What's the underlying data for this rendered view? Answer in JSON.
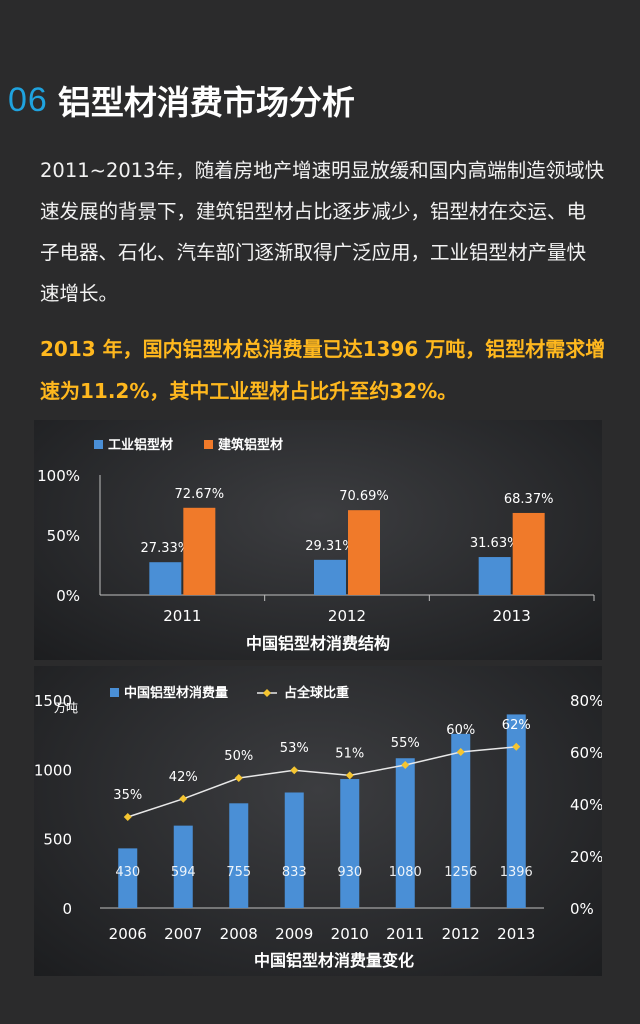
{
  "section": {
    "number": "06",
    "title": "铝型材消费市场分析"
  },
  "intro_text": "2011~2013年，随着房地产增速明显放缓和国内高端制造领域快速发展的背景下，建筑铝型材占比逐步减少，铝型材在交运、电子电器、石化、汽车部门逐渐取得广泛应用，工业铝型材产量快速增长。",
  "highlight_text": "2013 年，国内铝型材总消费量已达1396 万吨，铝型材需求增速为11.2%，其中工业型材占比升至约32%。",
  "colors": {
    "blue": "#4a8fd6",
    "orange": "#f07a2a",
    "line": "#e8e8e8",
    "marker": "#f5c531",
    "accent": "#1fa3df",
    "highlight": "#ffb81e"
  },
  "chart_data": [
    {
      "type": "bar",
      "title": "中国铝型材消费结构",
      "categories": [
        "2011",
        "2012",
        "2013"
      ],
      "series": [
        {
          "name": "工业铝型材",
          "values": [
            27.33,
            29.31,
            31.63
          ],
          "labels": [
            "27.33%",
            "29.31%",
            "31.63%"
          ]
        },
        {
          "name": "建筑铝型材",
          "values": [
            72.67,
            70.69,
            68.37
          ],
          "labels": [
            "72.67%",
            "70.69%",
            "68.37%"
          ]
        }
      ],
      "ylim": [
        0,
        100
      ],
      "yticks": [
        "0%",
        "50%",
        "100%"
      ],
      "legend": "top-left"
    },
    {
      "type": "bar+line",
      "title": "中国铝型材消费量变化",
      "categories": [
        "2006",
        "2007",
        "2008",
        "2009",
        "2010",
        "2011",
        "2012",
        "2013"
      ],
      "ylabel": "万吨",
      "series": [
        {
          "name": "中国铝型材消费量",
          "type": "bar",
          "axis": "left",
          "values": [
            430,
            594,
            755,
            833,
            930,
            1080,
            1256,
            1396
          ],
          "labels": [
            "430",
            "594",
            "755",
            "833",
            "930",
            "1080",
            "1256",
            "1396"
          ]
        },
        {
          "name": "占全球比重",
          "type": "line",
          "axis": "right",
          "values": [
            35,
            42,
            50,
            53,
            51,
            55,
            60,
            62
          ],
          "labels": [
            "35%",
            "42%",
            "50%",
            "53%",
            "51%",
            "55%",
            "60%",
            "62%"
          ]
        }
      ],
      "ylim_left": [
        0,
        1500
      ],
      "yticks_left": [
        "0",
        "500",
        "1000",
        "1500"
      ],
      "ylim_right": [
        0,
        80
      ],
      "yticks_right": [
        "0%",
        "20%",
        "40%",
        "60%",
        "80%"
      ],
      "legend": "top-left"
    }
  ]
}
